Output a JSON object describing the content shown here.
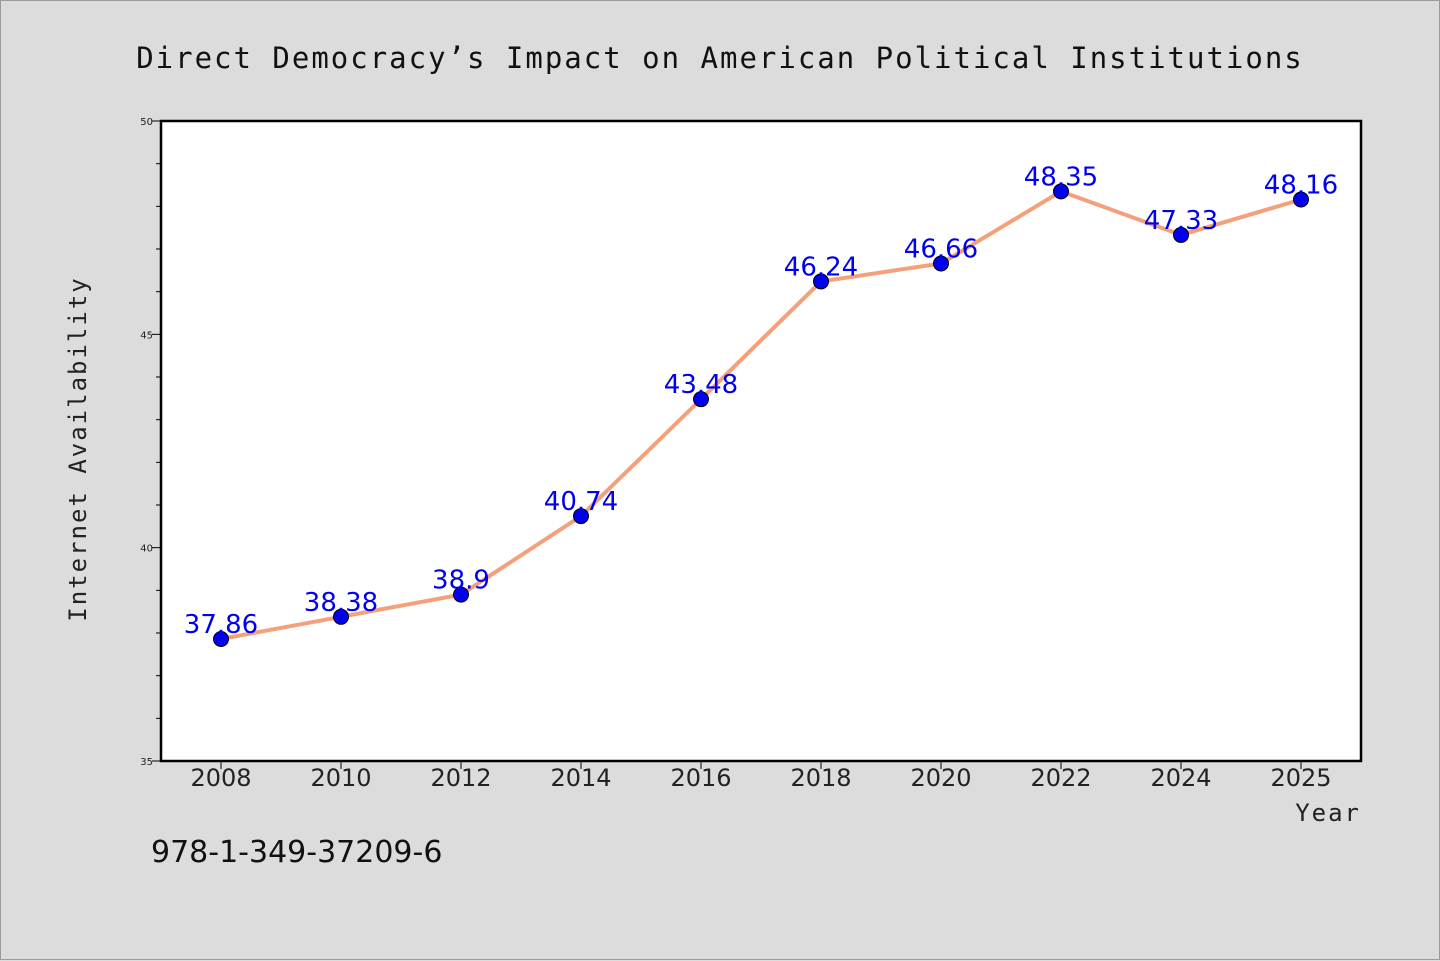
{
  "chart_data": {
    "type": "line",
    "title": "Direct Democracy’s Impact on American Political Institutions",
    "xlabel": "Year",
    "ylabel": "Internet Availability",
    "categories": [
      "2008",
      "2010",
      "2012",
      "2014",
      "2016",
      "2018",
      "2020",
      "2022",
      "2024",
      "2025"
    ],
    "series": [
      {
        "values": [
          37.86,
          38.38,
          38.9,
          40.74,
          43.48,
          46.24,
          46.66,
          48.35,
          47.33,
          48.16
        ],
        "value_labels": [
          "37.86",
          "38.38",
          "38.9",
          "40.74",
          "43.48",
          "46.24",
          "46.66",
          "48.35",
          "47.33",
          "48.16"
        ],
        "line_color": "#f4a07a",
        "marker_color": "#0000ee"
      }
    ],
    "ylim": [
      35,
      50
    ],
    "y_major_ticks": [
      "35",
      "40",
      "45",
      "50"
    ],
    "grid": false,
    "legend": "none"
  },
  "footer": {
    "code": "978-1-349-37209-6"
  },
  "colors": {
    "background": "#dcdcdc",
    "plot_background": "#ffffff",
    "axis": "#000000"
  }
}
